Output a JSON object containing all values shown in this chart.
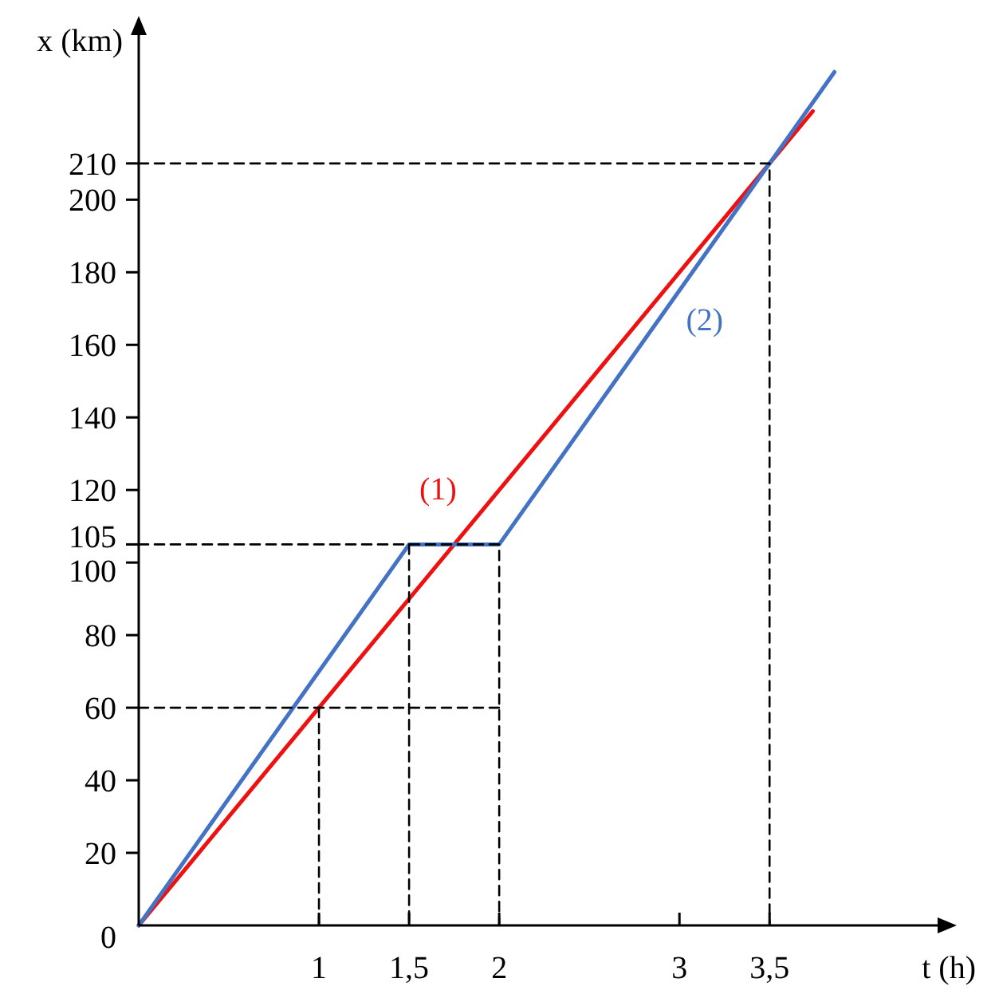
{
  "chart_data": {
    "type": "line",
    "xlabel": "t (h)",
    "ylabel": "x (km)",
    "xlim": [
      0,
      4.45
    ],
    "ylim": [
      0,
      248
    ],
    "xticks": [
      1,
      {
        "value": 1.5,
        "label": "1,5"
      },
      2,
      3,
      {
        "value": 3.5,
        "label": "3,5"
      }
    ],
    "yticks": [
      0,
      20,
      40,
      60,
      80,
      100,
      105,
      120,
      140,
      160,
      180,
      200,
      210
    ],
    "grid": false,
    "marker": "none",
    "series": [
      {
        "name": "(1)",
        "color": "#ee1111",
        "x": [
          0,
          3.74
        ],
        "values": [
          0,
          224.4
        ],
        "line_style": "solid"
      },
      {
        "name": "(2)",
        "color": "#4472c4",
        "x": [
          0,
          1.5,
          2,
          3.86
        ],
        "values": [
          0,
          105,
          105,
          235.2
        ],
        "line_style": "solid"
      },
      {
        "color": "#000000",
        "x": [
          0,
          3.5,
          3.5
        ],
        "values": [
          210,
          210,
          0
        ],
        "line_style": "dashed"
      },
      {
        "color": "#000000",
        "x": [
          0,
          2,
          2
        ],
        "values": [
          105,
          105,
          0
        ],
        "line_style": "dashed"
      },
      {
        "color": "#000000",
        "x": [
          1.5,
          1.5
        ],
        "values": [
          105,
          0
        ],
        "line_style": "dashed"
      },
      {
        "color": "#000000",
        "x": [
          0,
          2
        ],
        "values": [
          60,
          60
        ],
        "line_style": "dashed"
      },
      {
        "color": "#000000",
        "x": [
          1,
          1
        ],
        "values": [
          60,
          0
        ],
        "line_style": "dashed"
      }
    ]
  }
}
